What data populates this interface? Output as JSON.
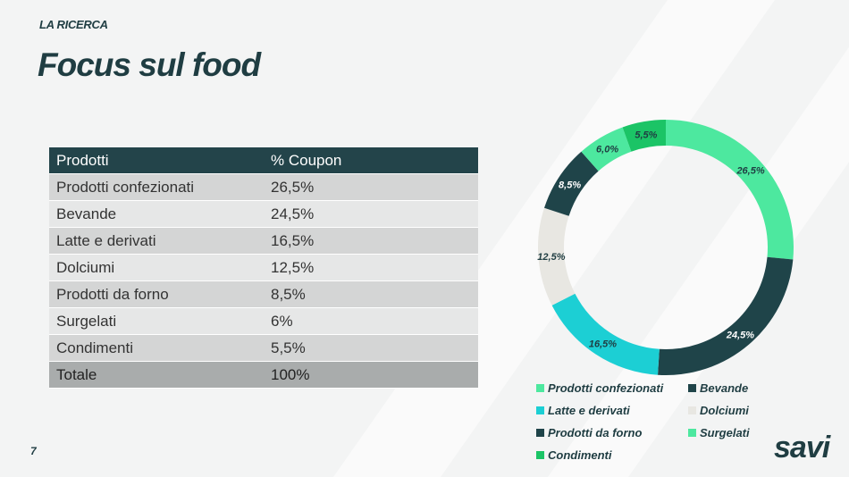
{
  "header": {
    "kicker": "LA RICERCA",
    "title": "Focus sul food"
  },
  "table": {
    "headers": [
      "Prodotti",
      "% Coupon"
    ],
    "rows": [
      [
        "Prodotti confezionati",
        "26,5%"
      ],
      [
        "Bevande",
        "24,5%"
      ],
      [
        "Latte e derivati",
        "16,5%"
      ],
      [
        "Dolciumi",
        "12,5%"
      ],
      [
        "Prodotti da forno",
        "8,5%"
      ],
      [
        "Surgelati",
        "6%"
      ],
      [
        "Condimenti",
        "5,5%"
      ]
    ],
    "total": [
      "Totale",
      "100%"
    ]
  },
  "page_number": "7",
  "logo": "savi",
  "chart_data": {
    "type": "pie",
    "donut": true,
    "categories": [
      "Prodotti confezionati",
      "Bevande",
      "Latte e derivati",
      "Dolciumi",
      "Prodotti da forno",
      "Surgelati",
      "Condimenti"
    ],
    "values": [
      26.5,
      24.5,
      16.5,
      12.5,
      8.5,
      6.0,
      5.5
    ],
    "labels": [
      "26,5%",
      "24,5%",
      "16,5%",
      "12,5%",
      "8,5%",
      "6,0%",
      "5,5%"
    ],
    "colors": [
      "#4de89f",
      "#1f4449",
      "#1ccfd4",
      "#e8e7e2",
      "#1f4449",
      "#4de89f",
      "#1bc466"
    ],
    "label_colors": [
      "#1f3d42",
      "#ffffff",
      "#1f3d42",
      "#1f3d42",
      "#ffffff",
      "#1f3d42",
      "#1f3d42"
    ],
    "legend_position": "bottom"
  }
}
